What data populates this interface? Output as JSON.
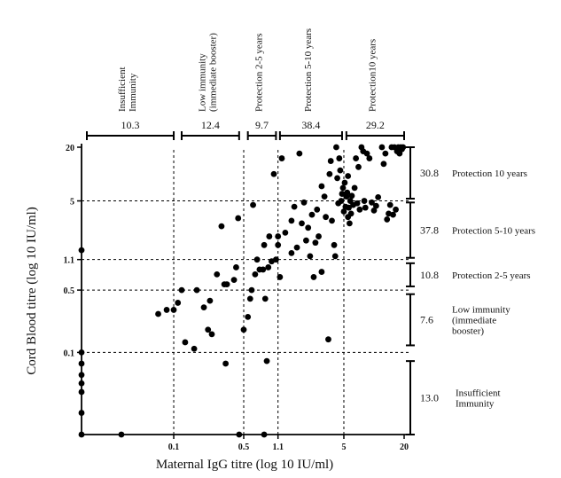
{
  "chart_data": {
    "type": "scatter",
    "title": "",
    "xlabel": "Maternal IgG titre (log 10 IU/ml)",
    "ylabel": "Cord Blood titre (log 10 IU/ml)",
    "x_scale": "log",
    "y_scale": "log",
    "xlim": [
      0.012,
      20
    ],
    "ylim": [
      0.012,
      20
    ],
    "x_ticks": [
      "0.1",
      "0.5",
      "1.1",
      "5",
      "20"
    ],
    "y_ticks": [
      "20",
      "5",
      "1.1",
      "0.5",
      "0.1"
    ],
    "grid": "dotted threshold lines at 0.1, 0.5, 1.1 and 5",
    "top_groups": [
      {
        "label": "Insufficient\nImmunity",
        "percent": "10.3"
      },
      {
        "label": "Low immunity\n(immediate booster)",
        "percent": "12.4"
      },
      {
        "label": "Protection 2-5 years",
        "percent": "9.7"
      },
      {
        "label": "Protection 5-10 years",
        "percent": "38.4"
      },
      {
        "label": "Protection10 years",
        "percent": "29.2"
      }
    ],
    "right_groups": [
      {
        "label": "Protection 10 years",
        "percent": "30.8"
      },
      {
        "label": "Protection 5-10 years",
        "percent": "37.8"
      },
      {
        "label": "Protection 2-5 years",
        "percent": "10.8"
      },
      {
        "label": "Low immunity\n(immediate\nbooster)",
        "percent": "7.6"
      },
      {
        "label": "Insufficient\nImmunity",
        "percent": "13.0"
      }
    ],
    "points": [
      [
        0.012,
        1.4
      ],
      [
        0.012,
        0.1
      ],
      [
        0.012,
        0.075
      ],
      [
        0.012,
        0.056
      ],
      [
        0.012,
        0.045
      ],
      [
        0.012,
        0.036
      ],
      [
        0.012,
        0.021
      ],
      [
        0.012,
        0.012
      ],
      [
        0.03,
        0.012
      ],
      [
        0.45,
        0.012
      ],
      [
        0.8,
        0.012
      ],
      [
        0.07,
        0.27
      ],
      [
        0.085,
        0.3
      ],
      [
        0.1,
        0.3
      ],
      [
        0.11,
        0.36
      ],
      [
        0.12,
        0.5
      ],
      [
        0.13,
        0.13
      ],
      [
        0.16,
        0.11
      ],
      [
        0.17,
        0.5
      ],
      [
        0.2,
        0.32
      ],
      [
        0.22,
        0.18
      ],
      [
        0.23,
        0.38
      ],
      [
        0.24,
        0.16
      ],
      [
        0.27,
        0.75
      ],
      [
        0.3,
        2.6
      ],
      [
        0.32,
        0.58
      ],
      [
        0.33,
        0.075
      ],
      [
        0.34,
        0.58
      ],
      [
        0.4,
        0.65
      ],
      [
        0.42,
        0.9
      ],
      [
        0.44,
        3.2
      ],
      [
        0.5,
        0.18
      ],
      [
        0.55,
        0.25
      ],
      [
        0.58,
        0.4
      ],
      [
        0.6,
        0.5
      ],
      [
        0.62,
        4.5
      ],
      [
        0.65,
        0.75
      ],
      [
        0.68,
        1.1
      ],
      [
        0.72,
        0.85
      ],
      [
        0.78,
        0.85
      ],
      [
        0.8,
        1.6
      ],
      [
        0.82,
        0.4
      ],
      [
        0.85,
        0.08
      ],
      [
        0.88,
        0.9
      ],
      [
        0.9,
        2
      ],
      [
        0.95,
        1.05
      ],
      [
        1.0,
        10
      ],
      [
        1.05,
        1.1
      ],
      [
        1.1,
        2
      ],
      [
        1.1,
        1.6
      ],
      [
        1.15,
        0.7
      ],
      [
        1.2,
        15
      ],
      [
        1.3,
        2.2
      ],
      [
        1.5,
        1.3
      ],
      [
        1.5,
        3
      ],
      [
        1.6,
        4.3
      ],
      [
        1.7,
        1.5
      ],
      [
        1.8,
        17
      ],
      [
        1.9,
        2.8
      ],
      [
        2,
        4.8
      ],
      [
        2.1,
        1.8
      ],
      [
        2.2,
        2.5
      ],
      [
        2.3,
        1.2
      ],
      [
        2.4,
        3.5
      ],
      [
        2.5,
        0.7
      ],
      [
        2.6,
        1.7
      ],
      [
        2.7,
        4
      ],
      [
        2.8,
        2
      ],
      [
        3,
        7.3
      ],
      [
        3,
        0.8
      ],
      [
        3.2,
        5.6
      ],
      [
        3.3,
        3.3
      ],
      [
        3.5,
        0.14
      ],
      [
        3.6,
        10
      ],
      [
        3.7,
        14
      ],
      [
        3.8,
        3
      ],
      [
        4,
        1.6
      ],
      [
        4.1,
        1.2
      ],
      [
        4.2,
        20
      ],
      [
        4.3,
        9
      ],
      [
        4.4,
        4.7
      ],
      [
        4.5,
        15
      ],
      [
        4.6,
        11
      ],
      [
        4.7,
        5
      ],
      [
        4.8,
        6
      ],
      [
        4.9,
        7
      ],
      [
        5,
        3.8
      ],
      [
        5.1,
        8
      ],
      [
        5.2,
        4.3
      ],
      [
        5.3,
        5.6
      ],
      [
        5.4,
        6.2
      ],
      [
        5.5,
        3.3
      ],
      [
        5.5,
        9.5
      ],
      [
        5.6,
        4.2
      ],
      [
        5.7,
        2.8
      ],
      [
        5.8,
        5
      ],
      [
        5.9,
        3.6
      ],
      [
        6,
        5.7
      ],
      [
        6.2,
        4.5
      ],
      [
        6.4,
        7
      ],
      [
        6.6,
        15
      ],
      [
        6.8,
        4.7
      ],
      [
        7,
        12
      ],
      [
        7.2,
        4
      ],
      [
        7.5,
        20
      ],
      [
        7.8,
        18
      ],
      [
        8,
        5
      ],
      [
        8.2,
        4.2
      ],
      [
        8.5,
        17
      ],
      [
        9,
        15
      ],
      [
        9.5,
        4.8
      ],
      [
        10,
        3.9
      ],
      [
        10.5,
        4.4
      ],
      [
        11,
        5.5
      ],
      [
        12,
        20
      ],
      [
        12.5,
        13
      ],
      [
        13,
        17
      ],
      [
        13.5,
        3.1
      ],
      [
        14,
        3.6
      ],
      [
        14.5,
        4.5
      ],
      [
        15,
        20
      ],
      [
        15.5,
        3.5
      ],
      [
        16,
        20
      ],
      [
        16.5,
        4
      ],
      [
        17,
        18
      ],
      [
        17.5,
        20
      ],
      [
        18,
        17
      ],
      [
        18.5,
        20
      ],
      [
        19,
        19
      ],
      [
        19.5,
        20
      ]
    ]
  }
}
